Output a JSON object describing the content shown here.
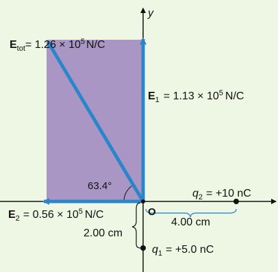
{
  "colors": {
    "background": "#eef6e4",
    "rectangle_fill": "#a996c4",
    "arrow": "#2a86c8",
    "axis": "#111111",
    "bracket": "#3a8fd0"
  },
  "labels": {
    "y_axis": "y",
    "origin": "O",
    "e_tot_symbol": "E",
    "e_tot_sub": "tot",
    "e_tot_value": "= 1.26 × 10",
    "e_tot_exp": "5",
    "e_tot_unit": "N/C",
    "e1_symbol": "E",
    "e1_sub": "1",
    "e1_value": "= 1.13 × 10",
    "e1_exp": "5",
    "e1_unit": "N/C",
    "e2_symbol": "E",
    "e2_sub": "2",
    "e2_value": "= 0.56 × 10",
    "e2_exp": "5",
    "e2_unit": "N/C",
    "angle": "63.4°",
    "q2_symbol": "q",
    "q2_sub": "2",
    "q2_value": "= +10 nC",
    "q1_symbol": "q",
    "q1_sub": "1",
    "q1_value": "= +5.0 nC",
    "dist_x": "4.00 cm",
    "dist_y": "2.00 cm"
  }
}
